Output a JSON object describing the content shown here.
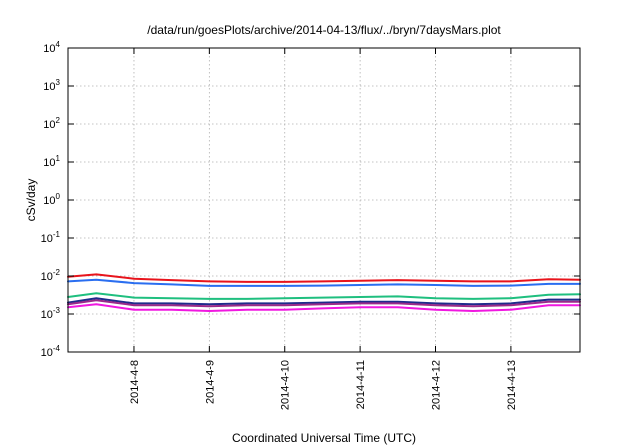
{
  "chart_data": {
    "type": "line",
    "title": "/data/run/goesPlots/archive/2014-04-13/flux/../bryn/7daysMars.plot",
    "xlabel": "Coordinated Universal Time (UTC)",
    "ylabel": "cSv/day",
    "y_scale": "log",
    "ylim": [
      0.0001,
      10000
    ],
    "y_ticks": [
      {
        "value": 0.0001,
        "base": "10",
        "exp": "-4"
      },
      {
        "value": 0.001,
        "base": "10",
        "exp": "-3"
      },
      {
        "value": 0.01,
        "base": "10",
        "exp": "-2"
      },
      {
        "value": 0.1,
        "base": "10",
        "exp": "-1"
      },
      {
        "value": 1,
        "base": "10",
        "exp": "0"
      },
      {
        "value": 10,
        "base": "10",
        "exp": "1"
      },
      {
        "value": 100,
        "base": "10",
        "exp": "2"
      },
      {
        "value": 1000,
        "base": "10",
        "exp": "3"
      },
      {
        "value": 10000,
        "base": "10",
        "exp": "4"
      }
    ],
    "xlim": [
      "2014-04-07 03:00",
      "2014-04-13 22:00"
    ],
    "x_ticks": [
      "2014-4-8",
      "2014-4-9",
      "2014-4-10",
      "2014-4-11",
      "2014-4-12",
      "2014-4-13"
    ],
    "grid": true,
    "x": [
      "2014-04-07 03:00",
      "2014-04-07 12:00",
      "2014-04-08 00:00",
      "2014-04-08 12:00",
      "2014-04-09 00:00",
      "2014-04-09 12:00",
      "2014-04-10 00:00",
      "2014-04-10 12:00",
      "2014-04-11 00:00",
      "2014-04-11 12:00",
      "2014-04-12 00:00",
      "2014-04-12 12:00",
      "2014-04-13 00:00",
      "2014-04-13 12:00",
      "2014-04-13 22:00"
    ],
    "series": [
      {
        "color": "#e8141c",
        "values": [
          0.0095,
          0.011,
          0.0085,
          0.0078,
          0.0072,
          0.007,
          0.007,
          0.0072,
          0.0075,
          0.0078,
          0.0075,
          0.0072,
          0.0072,
          0.0082,
          0.008
        ]
      },
      {
        "color": "#2a6ef0",
        "values": [
          0.0072,
          0.008,
          0.0065,
          0.006,
          0.0055,
          0.0055,
          0.0055,
          0.0056,
          0.0058,
          0.006,
          0.0058,
          0.0055,
          0.0056,
          0.0062,
          0.0062
        ]
      },
      {
        "color": "#1fbf7f",
        "values": [
          0.0028,
          0.0035,
          0.0027,
          0.0026,
          0.0025,
          0.0025,
          0.0026,
          0.0027,
          0.0028,
          0.0029,
          0.0026,
          0.0025,
          0.0026,
          0.0032,
          0.0033
        ]
      },
      {
        "color": "#1e2b8c",
        "values": [
          0.002,
          0.0026,
          0.0019,
          0.0019,
          0.0018,
          0.0019,
          0.0019,
          0.002,
          0.0021,
          0.0021,
          0.0019,
          0.0018,
          0.0019,
          0.0024,
          0.0024
        ]
      },
      {
        "color": "#9a2a8a",
        "values": [
          0.0018,
          0.0023,
          0.0017,
          0.0017,
          0.0016,
          0.0017,
          0.0017,
          0.0018,
          0.0019,
          0.0019,
          0.0017,
          0.0016,
          0.0017,
          0.0021,
          0.0021
        ]
      },
      {
        "color": "#f018e0",
        "values": [
          0.0015,
          0.0018,
          0.0013,
          0.0013,
          0.0012,
          0.0013,
          0.0013,
          0.0014,
          0.0015,
          0.0015,
          0.0013,
          0.0012,
          0.0013,
          0.0017,
          0.0017
        ]
      }
    ]
  }
}
